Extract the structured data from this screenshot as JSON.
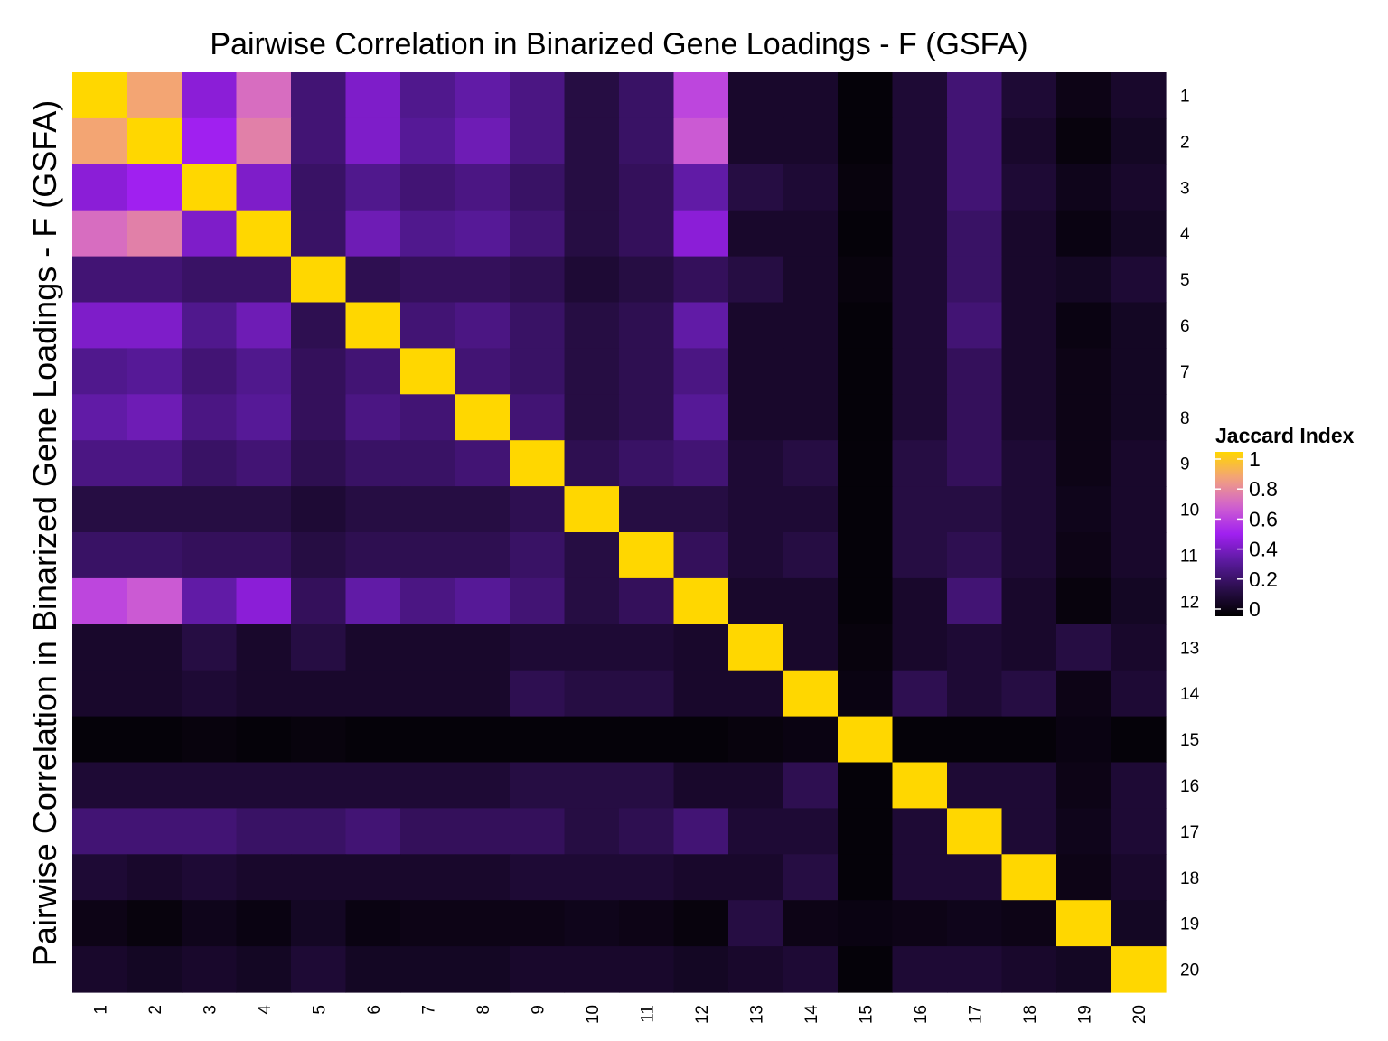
{
  "chart_data": {
    "type": "heatmap",
    "title": "Pairwise Correlation in Binarized Gene Loadings - F (GSFA)",
    "xlabel": "",
    "ylabel": "Pairwise Correlation in Binarized Gene Loadings - F (GSFA)",
    "rows": [
      "1",
      "2",
      "3",
      "4",
      "5",
      "6",
      "7",
      "8",
      "9",
      "10",
      "11",
      "12",
      "13",
      "14",
      "15",
      "16",
      "17",
      "18",
      "19",
      "20"
    ],
    "cols": [
      "1",
      "2",
      "3",
      "4",
      "5",
      "6",
      "7",
      "8",
      "9",
      "10",
      "11",
      "12",
      "13",
      "14",
      "15",
      "16",
      "17",
      "18",
      "19",
      "20"
    ],
    "values": [
      [
        1.0,
        0.85,
        0.45,
        0.7,
        0.25,
        0.42,
        0.3,
        0.35,
        0.28,
        0.15,
        0.22,
        0.6,
        0.1,
        0.1,
        0.02,
        0.12,
        0.25,
        0.12,
        0.05,
        0.1
      ],
      [
        0.85,
        1.0,
        0.5,
        0.75,
        0.25,
        0.42,
        0.32,
        0.38,
        0.28,
        0.15,
        0.22,
        0.65,
        0.1,
        0.1,
        0.02,
        0.12,
        0.25,
        0.1,
        0.03,
        0.08
      ],
      [
        0.45,
        0.5,
        1.0,
        0.42,
        0.22,
        0.3,
        0.25,
        0.28,
        0.22,
        0.15,
        0.2,
        0.35,
        0.15,
        0.12,
        0.03,
        0.12,
        0.25,
        0.12,
        0.06,
        0.1
      ],
      [
        0.7,
        0.75,
        0.42,
        1.0,
        0.22,
        0.38,
        0.3,
        0.32,
        0.25,
        0.15,
        0.2,
        0.45,
        0.1,
        0.1,
        0.02,
        0.12,
        0.22,
        0.1,
        0.04,
        0.08
      ],
      [
        0.25,
        0.25,
        0.22,
        0.22,
        1.0,
        0.18,
        0.2,
        0.2,
        0.18,
        0.12,
        0.15,
        0.2,
        0.15,
        0.1,
        0.03,
        0.12,
        0.22,
        0.1,
        0.08,
        0.12
      ],
      [
        0.42,
        0.42,
        0.3,
        0.38,
        0.18,
        1.0,
        0.25,
        0.28,
        0.22,
        0.15,
        0.18,
        0.35,
        0.1,
        0.1,
        0.02,
        0.12,
        0.25,
        0.1,
        0.04,
        0.08
      ],
      [
        0.3,
        0.32,
        0.25,
        0.3,
        0.2,
        0.25,
        1.0,
        0.25,
        0.22,
        0.15,
        0.18,
        0.28,
        0.1,
        0.1,
        0.02,
        0.12,
        0.2,
        0.1,
        0.05,
        0.08
      ],
      [
        0.35,
        0.38,
        0.28,
        0.32,
        0.2,
        0.28,
        0.25,
        1.0,
        0.25,
        0.15,
        0.18,
        0.32,
        0.1,
        0.1,
        0.02,
        0.12,
        0.2,
        0.1,
        0.05,
        0.08
      ],
      [
        0.28,
        0.28,
        0.22,
        0.25,
        0.18,
        0.22,
        0.22,
        0.25,
        1.0,
        0.18,
        0.22,
        0.25,
        0.12,
        0.15,
        0.02,
        0.15,
        0.2,
        0.12,
        0.05,
        0.1
      ],
      [
        0.15,
        0.15,
        0.15,
        0.15,
        0.12,
        0.15,
        0.15,
        0.15,
        0.18,
        1.0,
        0.15,
        0.15,
        0.12,
        0.12,
        0.02,
        0.15,
        0.15,
        0.12,
        0.06,
        0.1
      ],
      [
        0.22,
        0.22,
        0.2,
        0.2,
        0.15,
        0.18,
        0.18,
        0.18,
        0.22,
        0.15,
        1.0,
        0.2,
        0.12,
        0.15,
        0.02,
        0.15,
        0.18,
        0.12,
        0.05,
        0.1
      ],
      [
        0.6,
        0.65,
        0.35,
        0.45,
        0.2,
        0.35,
        0.28,
        0.32,
        0.25,
        0.15,
        0.2,
        1.0,
        0.1,
        0.1,
        0.02,
        0.1,
        0.25,
        0.1,
        0.03,
        0.08
      ],
      [
        0.1,
        0.1,
        0.15,
        0.1,
        0.15,
        0.1,
        0.1,
        0.1,
        0.12,
        0.12,
        0.12,
        0.1,
        1.0,
        0.1,
        0.03,
        0.1,
        0.12,
        0.1,
        0.15,
        0.1
      ],
      [
        0.1,
        0.1,
        0.12,
        0.1,
        0.1,
        0.1,
        0.1,
        0.1,
        0.18,
        0.15,
        0.15,
        0.1,
        0.1,
        1.0,
        0.04,
        0.18,
        0.12,
        0.15,
        0.05,
        0.12
      ],
      [
        0.02,
        0.02,
        0.03,
        0.02,
        0.03,
        0.02,
        0.02,
        0.02,
        0.02,
        0.02,
        0.02,
        0.02,
        0.03,
        0.04,
        1.0,
        0.02,
        0.02,
        0.02,
        0.04,
        0.02
      ],
      [
        0.12,
        0.12,
        0.12,
        0.12,
        0.12,
        0.12,
        0.12,
        0.12,
        0.15,
        0.15,
        0.15,
        0.1,
        0.1,
        0.18,
        0.02,
        1.0,
        0.12,
        0.12,
        0.05,
        0.12
      ],
      [
        0.25,
        0.25,
        0.25,
        0.22,
        0.22,
        0.25,
        0.2,
        0.2,
        0.2,
        0.15,
        0.18,
        0.25,
        0.12,
        0.12,
        0.02,
        0.12,
        1.0,
        0.12,
        0.06,
        0.12
      ],
      [
        0.12,
        0.1,
        0.12,
        0.1,
        0.1,
        0.1,
        0.1,
        0.1,
        0.12,
        0.12,
        0.12,
        0.1,
        0.1,
        0.15,
        0.02,
        0.12,
        0.12,
        1.0,
        0.05,
        0.1
      ],
      [
        0.05,
        0.03,
        0.06,
        0.04,
        0.08,
        0.04,
        0.05,
        0.05,
        0.05,
        0.06,
        0.05,
        0.03,
        0.15,
        0.05,
        0.04,
        0.05,
        0.06,
        0.05,
        1.0,
        0.08
      ],
      [
        0.1,
        0.08,
        0.1,
        0.08,
        0.12,
        0.08,
        0.08,
        0.08,
        0.1,
        0.1,
        0.1,
        0.08,
        0.1,
        0.12,
        0.02,
        0.12,
        0.12,
        0.1,
        0.08,
        1.0
      ]
    ],
    "legend": {
      "title": "Jaccard Index",
      "breaks": [
        "0",
        "0.2",
        "0.4",
        "0.6",
        "0.8",
        "1"
      ],
      "placement": "right"
    },
    "colorscale": [
      "#000000",
      "#2a0e4a",
      "#5a1a9e",
      "#a020f0",
      "#d060d0",
      "#f2a080",
      "#ffd700"
    ],
    "limits": [
      0,
      1
    ]
  }
}
